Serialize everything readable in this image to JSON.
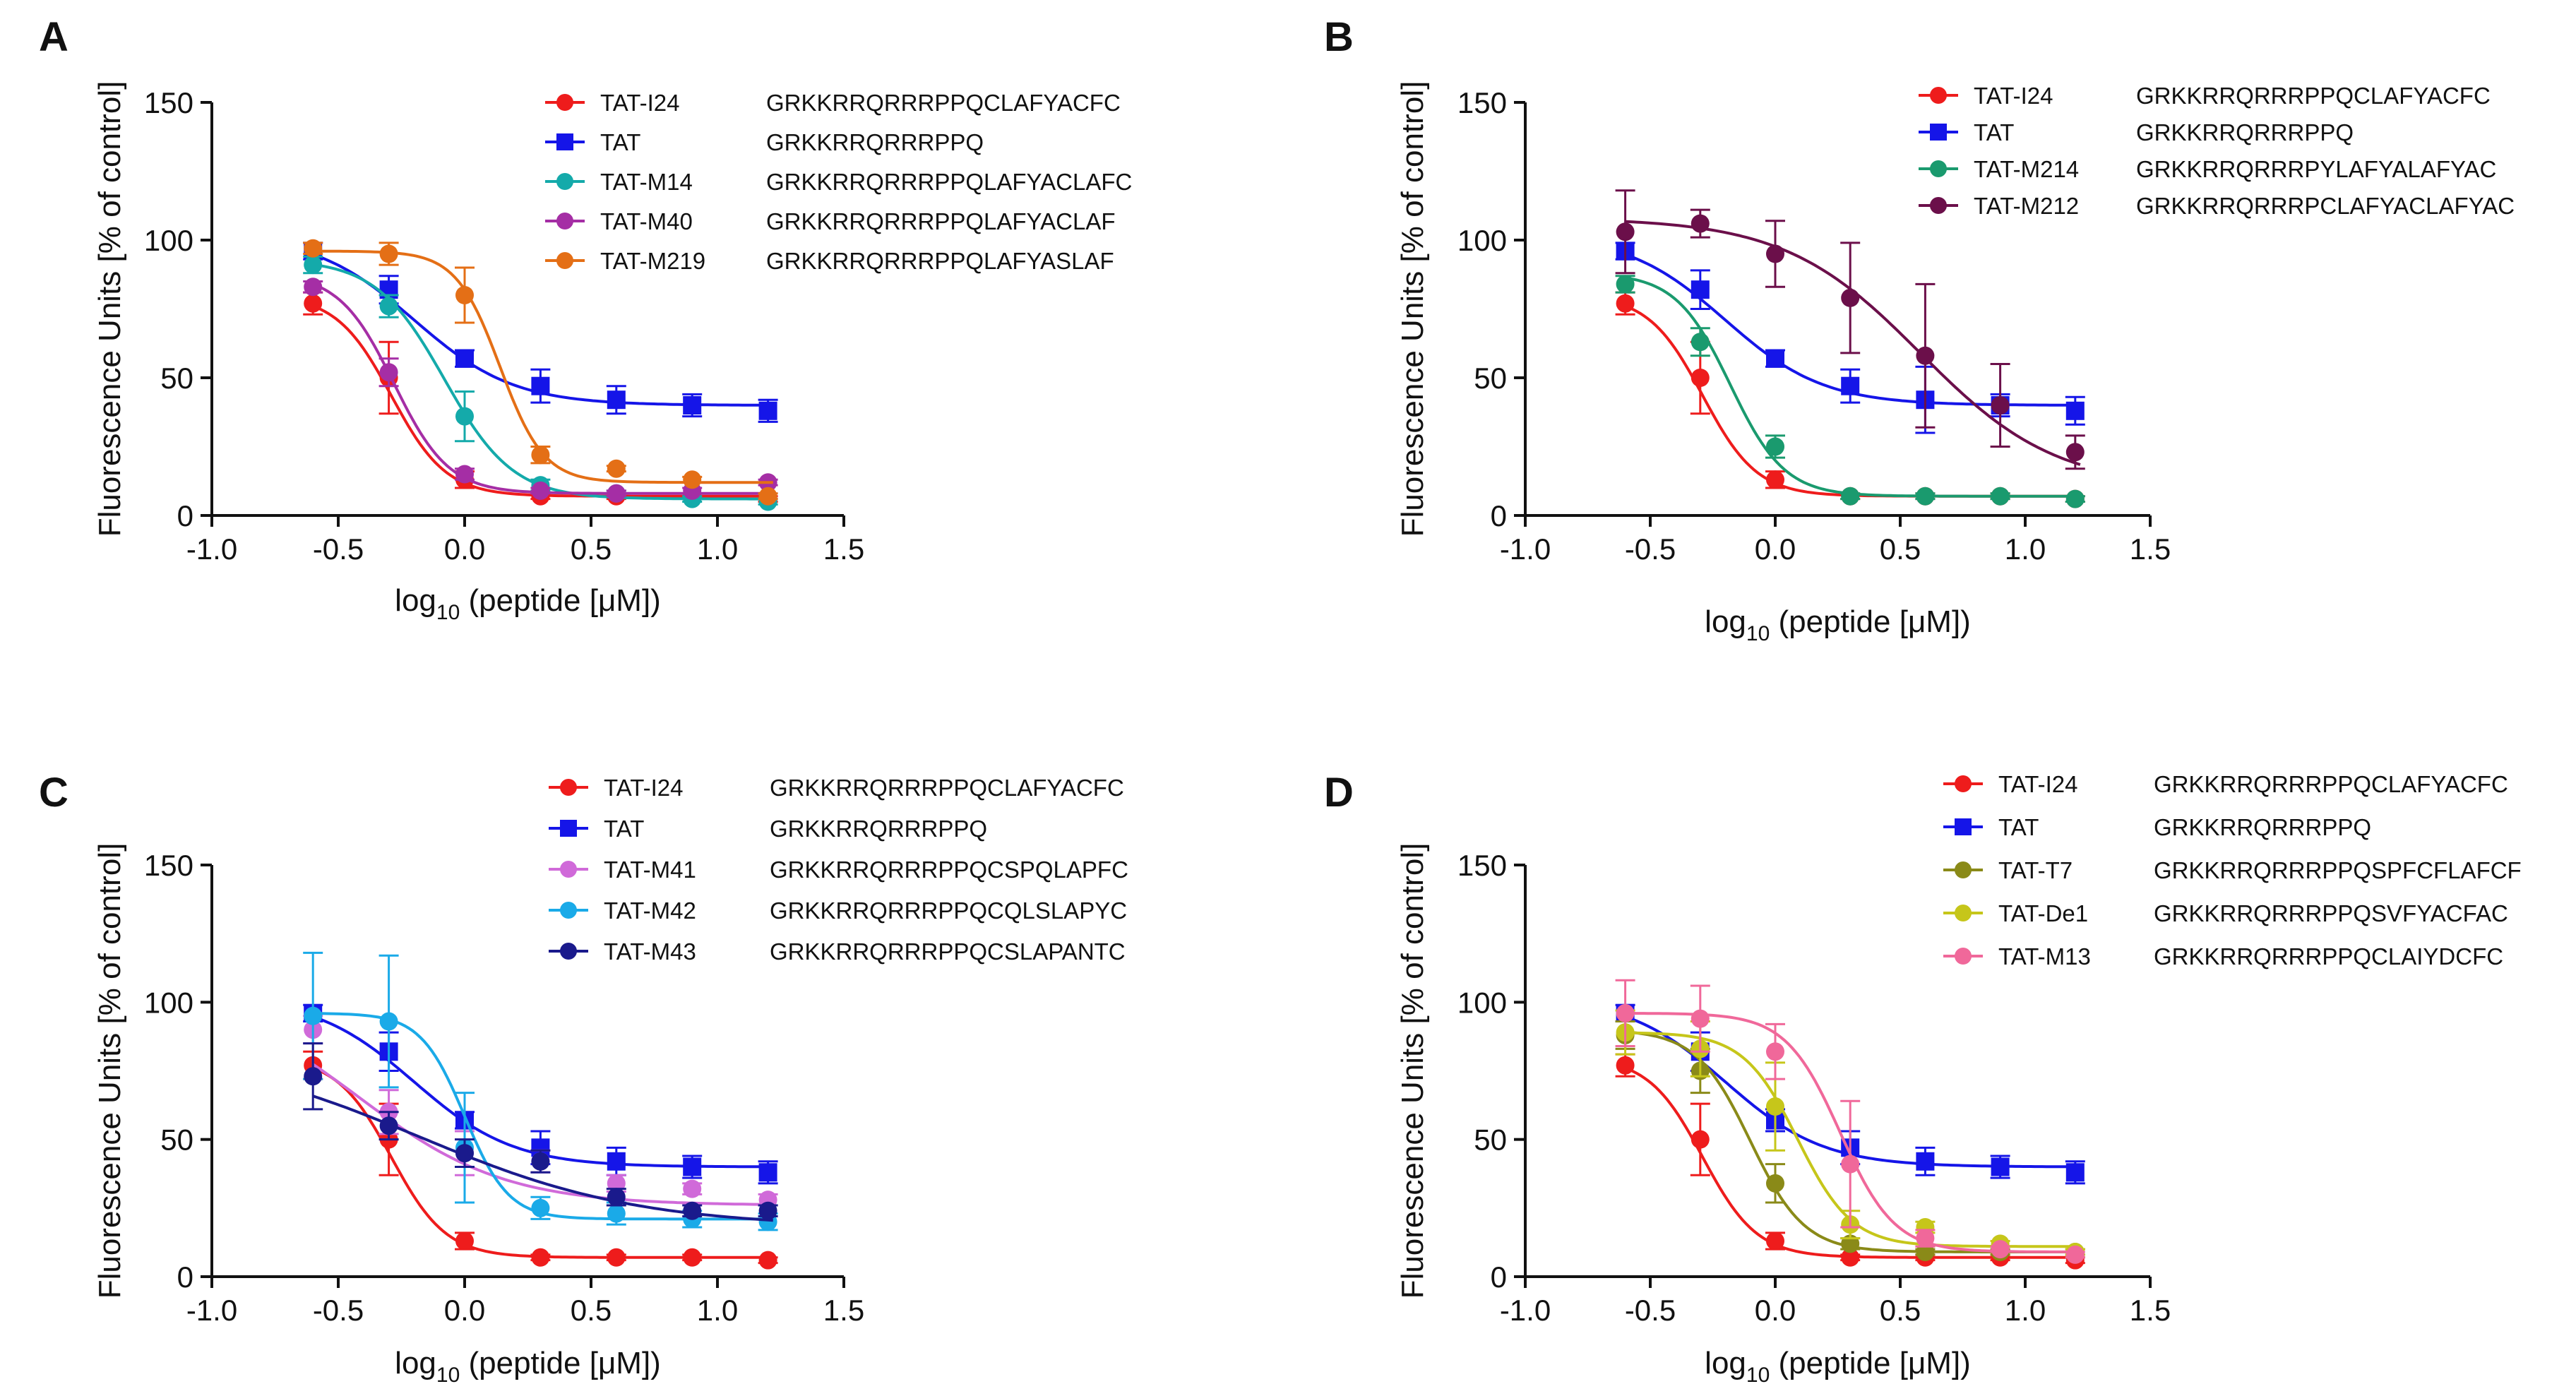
{
  "figure": {
    "y_axis_label": "Fluorescence Units [% of control]",
    "x_axis_label_prefix": "log",
    "x_axis_label_sub": "10",
    "x_axis_label_suffix": " (peptide [μM])"
  },
  "chart_data": [
    {
      "panel": "A",
      "type": "scatter",
      "xlabel": "log10 (peptide [μM])",
      "ylabel": "Fluorescence Units [% of control]",
      "xlim": [
        -1.0,
        1.5
      ],
      "ylim": [
        0,
        150
      ],
      "xticks": [
        "-1.0",
        "-0.5",
        "0.0",
        "0.5",
        "1.0",
        "1.5"
      ],
      "yticks": [
        "0",
        "50",
        "100",
        "150"
      ],
      "legend_position": "top-right",
      "series": [
        {
          "name": "TAT-I24",
          "sequence": "GRKKRRQRRRPPQCLAFYACFC",
          "color": "#ee1c1c",
          "marker": "circle",
          "x": [
            -0.6,
            -0.3,
            0.0,
            0.3,
            0.6,
            0.9,
            1.2
          ],
          "y": [
            77,
            50,
            13,
            7,
            7,
            7,
            6
          ],
          "err": [
            4,
            13,
            3,
            1,
            1,
            1,
            1
          ],
          "fit": {
            "bottom": 7,
            "top": 80,
            "ec50": -0.29,
            "hill": 4.0
          }
        },
        {
          "name": "TAT",
          "sequence": "GRKKRRQRRRPPQ",
          "color": "#1515e8",
          "marker": "square",
          "x": [
            -0.6,
            -0.3,
            0.0,
            0.3,
            0.6,
            0.9,
            1.2
          ],
          "y": [
            96,
            82,
            57,
            47,
            42,
            40,
            38
          ],
          "err": [
            3,
            5,
            3,
            6,
            5,
            4,
            4
          ],
          "fit": {
            "bottom": 40,
            "top": 102,
            "ec50": -0.2,
            "hill": 2.2
          }
        },
        {
          "name": "TAT-M14",
          "sequence": "GRKKRRQRRRPPQLAFYACLAFC",
          "color": "#14aaaa",
          "marker": "circle",
          "x": [
            -0.6,
            -0.3,
            0.0,
            0.3,
            0.6,
            0.9,
            1.2
          ],
          "y": [
            91,
            76,
            36,
            11,
            8,
            6,
            5
          ],
          "err": [
            3,
            4,
            9,
            2,
            1,
            1,
            1
          ],
          "fit": {
            "bottom": 6,
            "top": 93,
            "ec50": -0.08,
            "hill": 3.2
          }
        },
        {
          "name": "TAT-M40",
          "sequence": "GRKKRRQRRRPPQLAFYACLAF",
          "color": "#a52ea5",
          "marker": "circle",
          "x": [
            -0.6,
            -0.3,
            0.0,
            0.3,
            0.6,
            0.9,
            1.2
          ],
          "y": [
            83,
            52,
            15,
            9,
            8,
            9,
            12
          ],
          "err": [
            2,
            5,
            2,
            1,
            1,
            1,
            1
          ],
          "fit": {
            "bottom": 8,
            "top": 88,
            "ec50": -0.28,
            "hill": 4.0
          }
        },
        {
          "name": "TAT-M219",
          "sequence": "GRKKRRQRRRPPQLAFYASLAF",
          "color": "#e46f16",
          "marker": "circle",
          "x": [
            -0.6,
            -0.3,
            0.0,
            0.3,
            0.6,
            0.9,
            1.2
          ],
          "y": [
            97,
            95,
            80,
            22,
            17,
            13,
            7
          ],
          "err": [
            2,
            4,
            10,
            3,
            1,
            1,
            1
          ],
          "fit": {
            "bottom": 12,
            "top": 96,
            "ec50": 0.14,
            "hill": 5.0
          }
        }
      ]
    },
    {
      "panel": "B",
      "type": "scatter",
      "xlabel": "log10 (peptide [μM])",
      "ylabel": "Fluorescence Units [% of control]",
      "xlim": [
        -1.0,
        1.5
      ],
      "ylim": [
        0,
        150
      ],
      "xticks": [
        "-1.0",
        "-0.5",
        "0.0",
        "0.5",
        "1.0",
        "1.5"
      ],
      "yticks": [
        "0",
        "50",
        "100",
        "150"
      ],
      "legend_position": "top-right",
      "series": [
        {
          "name": "TAT-I24",
          "sequence": "GRKKRRQRRRPPQCLAFYACFC",
          "color": "#ee1c1c",
          "marker": "circle",
          "x": [
            -0.6,
            -0.3,
            0.0,
            0.3,
            0.6,
            0.9,
            1.2
          ],
          "y": [
            77,
            50,
            13,
            7,
            7,
            7,
            6
          ],
          "err": [
            4,
            13,
            3,
            1,
            1,
            1,
            1
          ],
          "fit": {
            "bottom": 7,
            "top": 80,
            "ec50": -0.29,
            "hill": 4.0
          }
        },
        {
          "name": "TAT",
          "sequence": "GRKKRRQRRRPPQ",
          "color": "#1515e8",
          "marker": "square",
          "x": [
            -0.6,
            -0.3,
            0.0,
            0.3,
            0.6,
            0.9,
            1.2
          ],
          "y": [
            96,
            82,
            57,
            47,
            42,
            40,
            38
          ],
          "err": [
            3,
            7,
            3,
            6,
            12,
            4,
            5
          ],
          "fit": {
            "bottom": 40,
            "top": 102,
            "ec50": -0.2,
            "hill": 2.2
          }
        },
        {
          "name": "TAT-M214",
          "sequence": "GRKKRRQRRRPYLAFYALAFYAC",
          "color": "#1a9a6e",
          "marker": "circle",
          "x": [
            -0.6,
            -0.3,
            0.0,
            0.3,
            0.6,
            0.9,
            1.2
          ],
          "y": [
            84,
            63,
            25,
            7,
            7,
            7,
            6
          ],
          "err": [
            3,
            5,
            4,
            1,
            1,
            1,
            1
          ],
          "fit": {
            "bottom": 7,
            "top": 88,
            "ec50": -0.18,
            "hill": 4.0
          }
        },
        {
          "name": "TAT-M212",
          "sequence": "GRKKRRQRRRPCLAFYACLAFYAC",
          "color": "#6b0f4a",
          "marker": "circle",
          "x": [
            -0.6,
            -0.3,
            0.0,
            0.3,
            0.6,
            0.9,
            1.2
          ],
          "y": [
            103,
            106,
            95,
            79,
            58,
            40,
            23
          ],
          "err": [
            15,
            5,
            12,
            20,
            26,
            15,
            6
          ],
          "fit": {
            "bottom": 10,
            "top": 108,
            "ec50": 0.58,
            "hill": 1.6
          }
        }
      ]
    },
    {
      "panel": "C",
      "type": "scatter",
      "xlabel": "log10 (peptide [μM])",
      "ylabel": "Fluorescence Units [% of control]",
      "xlim": [
        -1.0,
        1.5
      ],
      "ylim": [
        0,
        150
      ],
      "xticks": [
        "-1.0",
        "-0.5",
        "0.0",
        "0.5",
        "1.0",
        "1.5"
      ],
      "yticks": [
        "0",
        "50",
        "100",
        "150"
      ],
      "legend_position": "top-right",
      "series": [
        {
          "name": "TAT-I24",
          "sequence": "GRKKRRQRRRPPQCLAFYACFC",
          "color": "#ee1c1c",
          "marker": "circle",
          "x": [
            -0.6,
            -0.3,
            0.0,
            0.3,
            0.6,
            0.9,
            1.2
          ],
          "y": [
            77,
            50,
            13,
            7,
            7,
            7,
            6
          ],
          "err": [
            5,
            13,
            3,
            1,
            1,
            1,
            1
          ],
          "fit": {
            "bottom": 7,
            "top": 80,
            "ec50": -0.29,
            "hill": 4.0
          }
        },
        {
          "name": "TAT",
          "sequence": "GRKKRRQRRRPPQ",
          "color": "#1515e8",
          "marker": "square",
          "x": [
            -0.6,
            -0.3,
            0.0,
            0.3,
            0.6,
            0.9,
            1.2
          ],
          "y": [
            96,
            82,
            57,
            47,
            42,
            40,
            38
          ],
          "err": [
            3,
            7,
            3,
            6,
            5,
            4,
            4
          ],
          "fit": {
            "bottom": 40,
            "top": 102,
            "ec50": -0.2,
            "hill": 2.2
          }
        },
        {
          "name": "TAT-M41",
          "sequence": "GRKKRRQRRRPPQCSPQLAPFC",
          "color": "#d06ad9",
          "marker": "circle",
          "x": [
            -0.6,
            -0.3,
            0.0,
            0.3,
            0.6,
            0.9,
            1.2
          ],
          "y": [
            90,
            60,
            45,
            42,
            34,
            32,
            28
          ],
          "err": [
            5,
            8,
            8,
            4,
            3,
            2,
            2
          ],
          "fit": {
            "bottom": 26,
            "top": 105,
            "ec50": -0.42,
            "hill": 1.5
          }
        },
        {
          "name": "TAT-M42",
          "sequence": "GRKKRRQRRRPPQCQLSLAPYC",
          "color": "#1aaae8",
          "marker": "circle",
          "x": [
            -0.6,
            -0.3,
            0.0,
            0.3,
            0.6,
            0.9,
            1.2
          ],
          "y": [
            95,
            93,
            47,
            25,
            23,
            21,
            20
          ],
          "err": [
            23,
            24,
            20,
            4,
            4,
            3,
            3
          ],
          "fit": {
            "bottom": 21,
            "top": 96,
            "ec50": 0.0,
            "hill": 5.0
          }
        },
        {
          "name": "TAT-M43",
          "sequence": "GRKKRRQRRRPPQCSLAPANTC",
          "color": "#1a1a8c",
          "marker": "circle",
          "x": [
            -0.6,
            -0.3,
            0.0,
            0.3,
            0.6,
            0.9,
            1.2
          ],
          "y": [
            73,
            55,
            45,
            42,
            29,
            24,
            24
          ],
          "err": [
            12,
            5,
            5,
            4,
            3,
            2,
            2
          ],
          "fit": {
            "bottom": 18,
            "top": 84,
            "ec50": -0.18,
            "hill": 1.0
          }
        }
      ]
    },
    {
      "panel": "D",
      "type": "scatter",
      "xlabel": "log10 (peptide [μM])",
      "ylabel": "Fluorescence Units [% of control]",
      "xlim": [
        -1.0,
        1.5
      ],
      "ylim": [
        0,
        150
      ],
      "xticks": [
        "-1.0",
        "-0.5",
        "0.0",
        "0.5",
        "1.0",
        "1.5"
      ],
      "yticks": [
        "0",
        "50",
        "100",
        "150"
      ],
      "legend_position": "top-right",
      "series": [
        {
          "name": "TAT-I24",
          "sequence": "GRKKRRQRRRPPQCLAFYACFC",
          "color": "#ee1c1c",
          "marker": "circle",
          "x": [
            -0.6,
            -0.3,
            0.0,
            0.3,
            0.6,
            0.9,
            1.2
          ],
          "y": [
            77,
            50,
            13,
            7,
            7,
            7,
            6
          ],
          "err": [
            4,
            13,
            3,
            1,
            1,
            1,
            1
          ],
          "fit": {
            "bottom": 7,
            "top": 80,
            "ec50": -0.29,
            "hill": 4.0
          }
        },
        {
          "name": "TAT",
          "sequence": "GRKKRRQRRRPPQ",
          "color": "#1515e8",
          "marker": "square",
          "x": [
            -0.6,
            -0.3,
            0.0,
            0.3,
            0.6,
            0.9,
            1.2
          ],
          "y": [
            96,
            82,
            57,
            47,
            42,
            40,
            38
          ],
          "err": [
            3,
            7,
            4,
            6,
            5,
            4,
            4
          ],
          "fit": {
            "bottom": 40,
            "top": 102,
            "ec50": -0.2,
            "hill": 2.2
          }
        },
        {
          "name": "TAT-T7",
          "sequence": "GRKKRRQRRRPPQSPFCFLAFCF",
          "color": "#8a8a18",
          "marker": "circle",
          "x": [
            -0.6,
            -0.3,
            0.0,
            0.3,
            0.6,
            0.9,
            1.2
          ],
          "y": [
            88,
            75,
            34,
            12,
            9,
            9,
            9
          ],
          "err": [
            5,
            8,
            7,
            2,
            1,
            1,
            1
          ],
          "fit": {
            "bottom": 9,
            "top": 90,
            "ec50": -0.1,
            "hill": 4.0
          }
        },
        {
          "name": "TAT-De1",
          "sequence": "GRKKRRQRRRPPQSVFYACFAC",
          "color": "#c6c61a",
          "marker": "circle",
          "x": [
            -0.6,
            -0.3,
            0.0,
            0.3,
            0.6,
            0.9,
            1.2
          ],
          "y": [
            89,
            83,
            62,
            19,
            18,
            12,
            9
          ],
          "err": [
            8,
            10,
            16,
            5,
            2,
            1,
            1
          ],
          "fit": {
            "bottom": 11,
            "top": 89,
            "ec50": 0.09,
            "hill": 4.0
          }
        },
        {
          "name": "TAT-M13",
          "sequence": "GRKKRRQRRRPPQCLAIYDCFC",
          "color": "#f0689a",
          "marker": "circle",
          "x": [
            -0.6,
            -0.3,
            0.0,
            0.3,
            0.6,
            0.9,
            1.2
          ],
          "y": [
            96,
            94,
            82,
            41,
            14,
            10,
            8
          ],
          "err": [
            12,
            12,
            10,
            23,
            3,
            1,
            1
          ],
          "fit": {
            "bottom": 9,
            "top": 96,
            "ec50": 0.26,
            "hill": 4.0
          }
        }
      ]
    }
  ]
}
